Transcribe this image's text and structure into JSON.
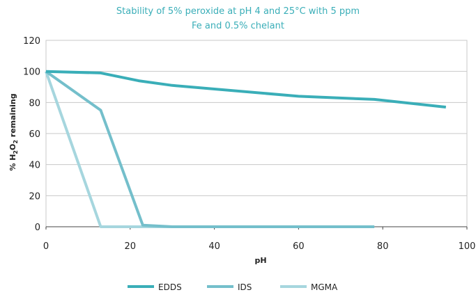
{
  "chart_data": {
    "type": "line",
    "title_line1": "Stability of 5% peroxide at pH 4 and 25°C with 5 ppm",
    "title_line2": "Fe and 0.5% chelant",
    "xlabel": "pH",
    "ylabel_prefix": "% H",
    "ylabel_sub1": "2",
    "ylabel_mid": "O",
    "ylabel_sub2": "2",
    "ylabel_suffix": " remaining",
    "xlim": [
      0,
      100
    ],
    "ylim": [
      0,
      120
    ],
    "x_ticks": [
      0,
      20,
      40,
      60,
      80,
      100
    ],
    "y_ticks": [
      0,
      20,
      40,
      60,
      80,
      100,
      120
    ],
    "grid": "horizontal",
    "legend_position": "bottom",
    "series": [
      {
        "name": "EDDS",
        "color": "#3aaeb8",
        "x": [
          0,
          13,
          22,
          30,
          60,
          78,
          95
        ],
        "y": [
          100,
          99,
          94,
          91,
          84,
          82,
          77
        ]
      },
      {
        "name": "IDS",
        "color": "#74bfcb",
        "x": [
          0,
          13,
          23,
          30,
          78
        ],
        "y": [
          100,
          75,
          1,
          0,
          0
        ]
      },
      {
        "name": "MGMA",
        "color": "#a6d6de",
        "x": [
          0,
          13,
          78
        ],
        "y": [
          100,
          0,
          0
        ]
      }
    ]
  }
}
